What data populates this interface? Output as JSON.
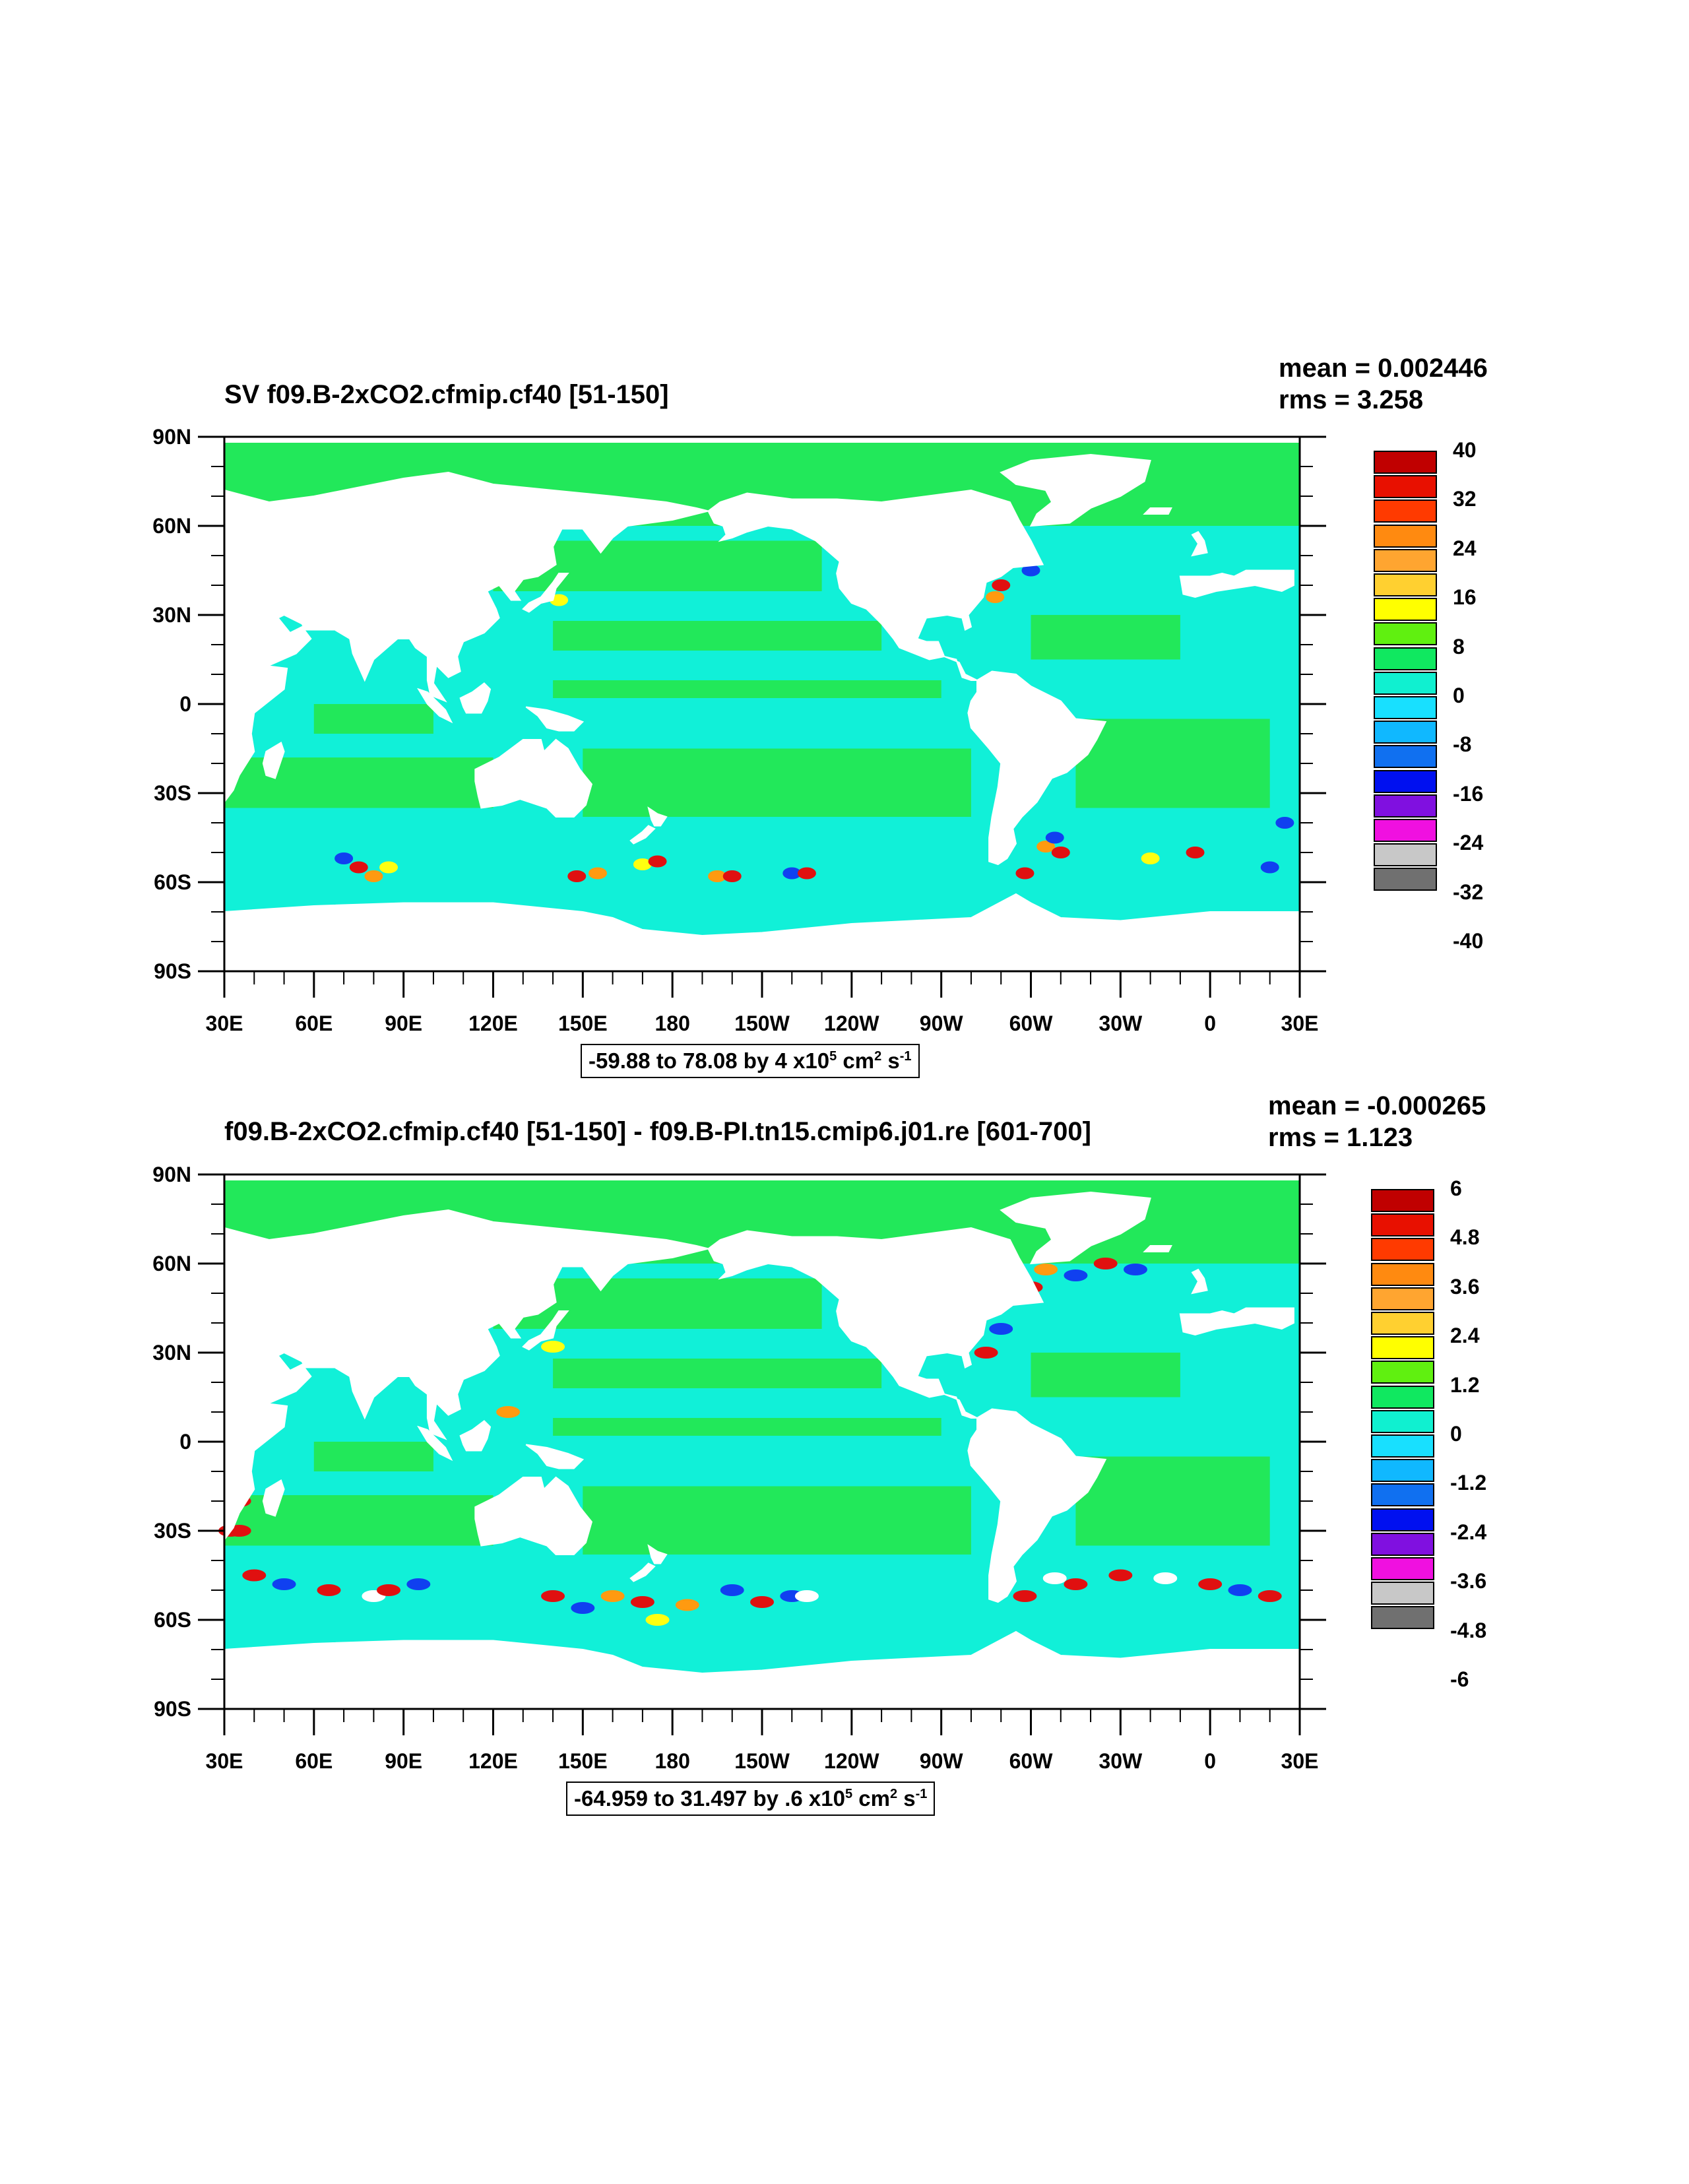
{
  "colors": {
    "land": "#ffffff",
    "ocean_pos_small": "#22e85a",
    "ocean_neg_small": "#11f0d8",
    "highlight_red": "#e01010",
    "highlight_orange": "#ff9a10",
    "highlight_yellow": "#ffff10",
    "highlight_blue": "#1040f0"
  },
  "panels": [
    {
      "title": "SV f09.B-2xCO2.cfmip.cf40 [51-150]",
      "stats": {
        "mean": "mean = 0.002446",
        "rms": "rms = 3.258"
      },
      "range": {
        "text": "-59.88 to 78.08 by 4 x10",
        "exp": "5",
        "unit_a": " cm",
        "exp2": "2",
        "unit_b": " s",
        "exp3": "-1"
      },
      "y_ticks": [
        "90N",
        "60N",
        "30N",
        "0",
        "30S",
        "60S",
        "90S"
      ],
      "x_ticks": [
        "30E",
        "60E",
        "90E",
        "120E",
        "150E",
        "180",
        "150W",
        "120W",
        "90W",
        "60W",
        "30W",
        "0",
        "30E"
      ],
      "colorbar": {
        "labels": [
          "40",
          "32",
          "24",
          "16",
          "8",
          "0",
          "-8",
          "-16",
          "-24",
          "-32",
          "-40"
        ],
        "colors": [
          "#c00000",
          "#e81000",
          "#ff3a00",
          "#ff8a10",
          "#ffa530",
          "#ffd030",
          "#ffff00",
          "#60f010",
          "#10e860",
          "#10f0d0",
          "#18e0ff",
          "#10b8ff",
          "#1070f0",
          "#0010f0",
          "#8010e0",
          "#f010e0",
          "#c8c8c8",
          "#707070"
        ]
      },
      "hotspot_level": 1
    },
    {
      "title": "f09.B-2xCO2.cfmip.cf40 [51-150] - f09.B-PI.tn15.cmip6.j01.re [601-700]",
      "stats": {
        "mean": "mean = -0.000265",
        "rms": "rms = 1.123"
      },
      "range": {
        "text": "-64.959 to 31.497 by .6 x10",
        "exp": "5",
        "unit_a": " cm",
        "exp2": "2",
        "unit_b": " s",
        "exp3": "-1"
      },
      "y_ticks": [
        "90N",
        "60N",
        "30N",
        "0",
        "30S",
        "60S",
        "90S"
      ],
      "x_ticks": [
        "30E",
        "60E",
        "90E",
        "120E",
        "150E",
        "180",
        "150W",
        "120W",
        "90W",
        "60W",
        "30W",
        "0",
        "30E"
      ],
      "colorbar": {
        "labels": [
          "6",
          "4.8",
          "3.6",
          "2.4",
          "1.2",
          "0",
          "-1.2",
          "-2.4",
          "-3.6",
          "-4.8",
          "-6"
        ],
        "colors": [
          "#c00000",
          "#e81000",
          "#ff3a00",
          "#ff8a10",
          "#ffa530",
          "#ffd030",
          "#ffff00",
          "#60f010",
          "#10e860",
          "#10f0d0",
          "#18e0ff",
          "#10b8ff",
          "#1070f0",
          "#0010f0",
          "#8010e0",
          "#f010e0",
          "#c8c8c8",
          "#707070"
        ]
      },
      "hotspot_level": 2
    }
  ]
}
